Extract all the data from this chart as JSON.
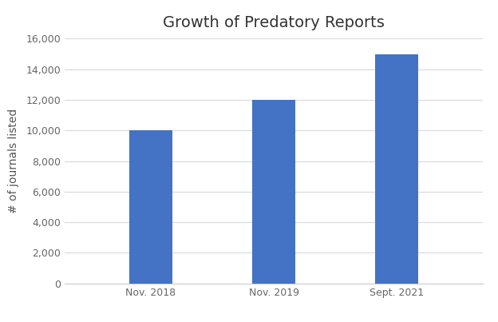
{
  "title": "Growth of Predatory Reports",
  "categories": [
    "Nov. 2018",
    "Nov. 2019",
    "Sept. 2021"
  ],
  "values": [
    10000,
    12000,
    15000
  ],
  "bar_color": "#4472C4",
  "ylabel": "# of journals listed",
  "ylim": [
    0,
    16000
  ],
  "yticks": [
    0,
    2000,
    4000,
    6000,
    8000,
    10000,
    12000,
    14000,
    16000
  ],
  "background_color": "#ffffff",
  "title_fontsize": 14,
  "label_fontsize": 10,
  "tick_fontsize": 9,
  "bar_width": 0.35
}
